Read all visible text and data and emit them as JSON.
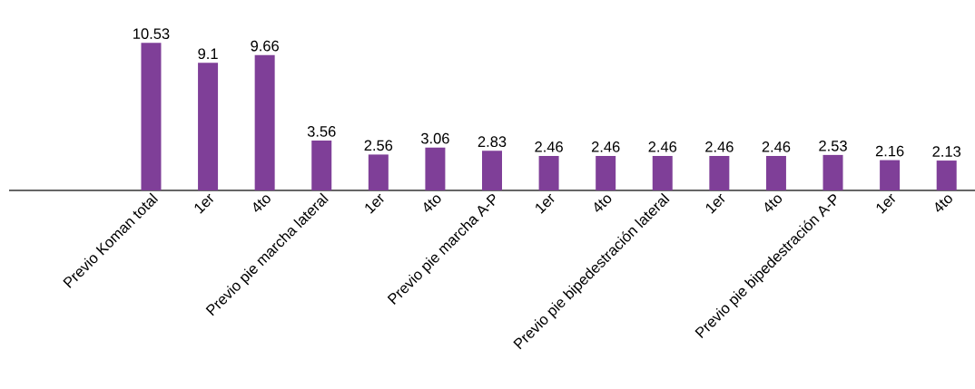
{
  "chart_data": {
    "type": "bar",
    "color": "#7f3f98",
    "data_labels": true,
    "tick_labels": "x",
    "categories": [
      null,
      null,
      "Previo Koman total",
      "1er",
      "4to",
      "Previo pie marcha lateral",
      "1er",
      "4to",
      "Previo pie marcha A-P",
      "1er",
      "4to",
      "Previo pie bipedestración lateral",
      "1er",
      "4to",
      "Previo pie bipedestración A-P",
      "1er",
      "4to"
    ],
    "values": [
      null,
      null,
      10.53,
      9.1,
      9.66,
      3.56,
      2.56,
      3.06,
      2.83,
      2.46,
      2.46,
      2.46,
      2.46,
      2.46,
      2.53,
      2.16,
      2.13
    ]
  }
}
